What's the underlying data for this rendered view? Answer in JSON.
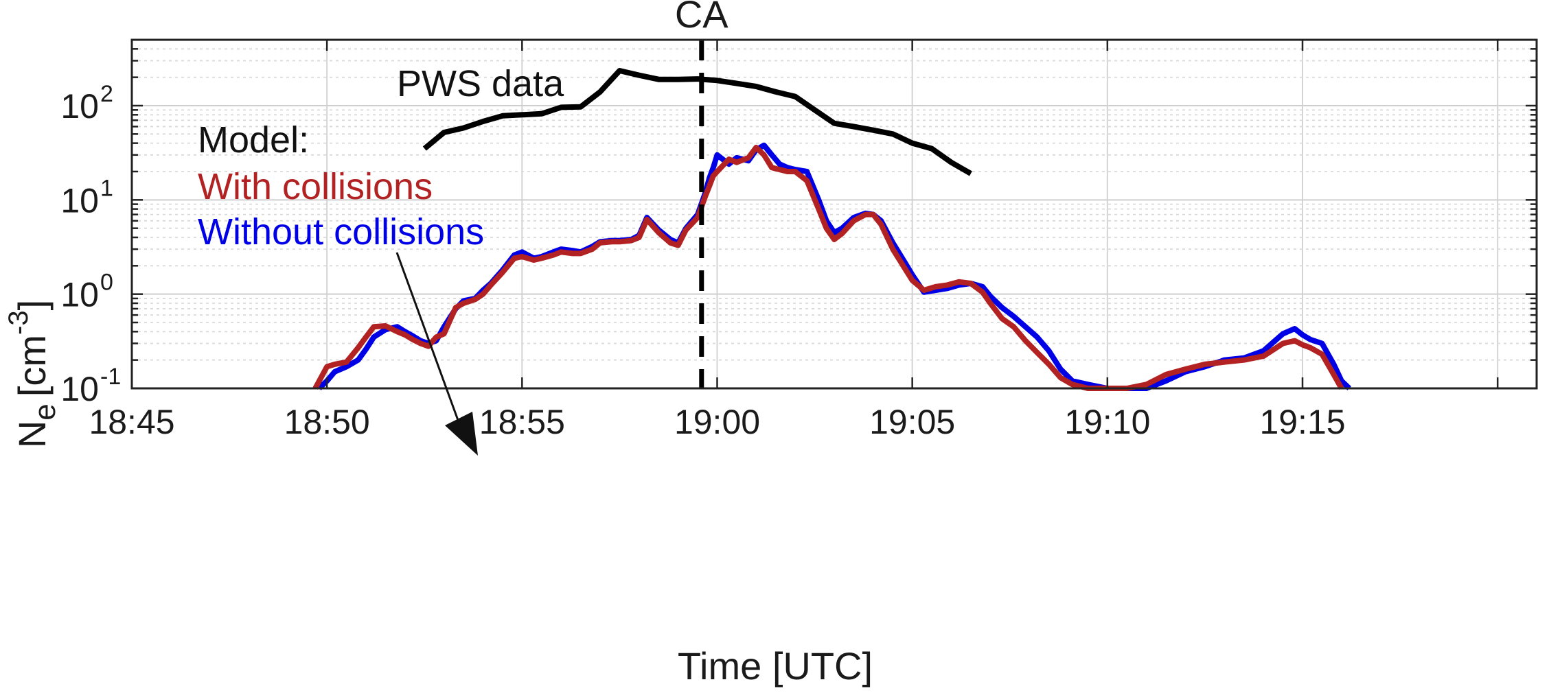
{
  "chart_data": {
    "type": "line",
    "title": "",
    "xlabel": "Time [UTC]",
    "ylabel": "N",
    "ylabel_subscript": "e",
    "ylabel_unit_prefix": "[cm",
    "ylabel_unit_exp": "-3",
    "ylabel_unit_suffix": "]",
    "yscale": "log",
    "x_unit": "minutes after 18:45 UTC",
    "xlim": [
      0,
      36
    ],
    "ylim": [
      0.1,
      500
    ],
    "grid": true,
    "minor_grid": true,
    "xticks": [
      {
        "value": 0,
        "label": "18:45"
      },
      {
        "value": 5,
        "label": "18:50"
      },
      {
        "value": 10,
        "label": "18:55"
      },
      {
        "value": 15,
        "label": "19:00"
      },
      {
        "value": 20,
        "label": "19:05"
      },
      {
        "value": 25,
        "label": "19:10"
      },
      {
        "value": 30,
        "label": "19:15"
      }
    ],
    "yticks": [
      {
        "value": 0.1,
        "base": "10",
        "exp": "-1"
      },
      {
        "value": 1,
        "base": "10",
        "exp": "0"
      },
      {
        "value": 10,
        "base": "10",
        "exp": "1"
      },
      {
        "value": 100,
        "base": "10",
        "exp": "2"
      }
    ],
    "vline": {
      "x": 14.6,
      "label": "CA",
      "color": "#000000",
      "style": "dashed"
    },
    "annotations": {
      "pws_label": "PWS data",
      "model_label": "Model:",
      "with_label": "With collisions",
      "without_label": "Without collisions"
    },
    "series": [
      {
        "name": "PWS data",
        "color": "#000000",
        "x": [
          7.5,
          8.0,
          8.5,
          9.0,
          9.5,
          10.0,
          10.5,
          11.0,
          11.5,
          12.0,
          12.5,
          13.0,
          13.5,
          14.0,
          14.5,
          15.0,
          15.5,
          16.0,
          16.5,
          17.0,
          17.5,
          18.0,
          18.5,
          19.0,
          19.5,
          20.0,
          20.5,
          21.0,
          21.5
        ],
        "values": [
          35,
          52,
          58,
          68,
          78,
          80,
          82,
          96,
          97,
          140,
          235,
          210,
          190,
          190,
          192,
          185,
          172,
          160,
          140,
          125,
          90,
          65,
          60,
          55,
          50,
          40,
          35,
          25,
          19
        ]
      },
      {
        "name": "Without collisions",
        "color": "#0000e6",
        "x": [
          4.8,
          5.0,
          5.2,
          5.5,
          5.8,
          6.0,
          6.2,
          6.5,
          6.8,
          7.0,
          7.2,
          7.4,
          7.6,
          7.8,
          8.0,
          8.3,
          8.5,
          8.8,
          9.0,
          9.2,
          9.5,
          9.8,
          10.0,
          10.3,
          10.5,
          10.8,
          11.0,
          11.3,
          11.5,
          11.8,
          12.0,
          12.3,
          12.5,
          12.8,
          13.0,
          13.2,
          13.5,
          13.8,
          14.0,
          14.2,
          14.5,
          14.7,
          14.8,
          14.9,
          15.0,
          15.3,
          15.5,
          15.8,
          16.0,
          16.2,
          16.4,
          16.6,
          16.8,
          17.0,
          17.3,
          17.6,
          17.8,
          18.0,
          18.2,
          18.5,
          18.8,
          19.0,
          19.2,
          19.5,
          19.8,
          20.0,
          20.3,
          20.6,
          20.9,
          21.2,
          21.5,
          21.8,
          22.0,
          22.3,
          22.6,
          22.9,
          23.2,
          23.5,
          23.8,
          24.1,
          24.5,
          25.0,
          25.5,
          26.0,
          26.5,
          27.0,
          27.5,
          28.0,
          28.5,
          29.0,
          29.5,
          29.8,
          30.0,
          30.2,
          30.5,
          30.8,
          31.0,
          31.2
        ],
        "values": [
          0.1,
          0.12,
          0.15,
          0.17,
          0.2,
          0.26,
          0.35,
          0.42,
          0.45,
          0.4,
          0.36,
          0.32,
          0.3,
          0.32,
          0.45,
          0.7,
          0.85,
          0.9,
          1.1,
          1.3,
          1.8,
          2.6,
          2.8,
          2.4,
          2.5,
          2.8,
          3.0,
          2.9,
          2.8,
          3.2,
          3.6,
          3.7,
          3.7,
          3.8,
          4.2,
          6.5,
          4.8,
          3.8,
          3.5,
          5.0,
          7.0,
          12.0,
          17.0,
          22.0,
          30.0,
          24.0,
          28.0,
          26.0,
          34.0,
          38.0,
          30.0,
          24.0,
          22.0,
          21.0,
          20.0,
          10.0,
          6.0,
          4.5,
          5.0,
          6.5,
          7.2,
          7.0,
          6.0,
          3.5,
          2.2,
          1.6,
          1.05,
          1.1,
          1.15,
          1.25,
          1.3,
          1.2,
          0.95,
          0.72,
          0.58,
          0.45,
          0.35,
          0.25,
          0.16,
          0.12,
          0.11,
          0.1,
          0.1,
          0.1,
          0.12,
          0.15,
          0.17,
          0.2,
          0.21,
          0.25,
          0.38,
          0.43,
          0.37,
          0.33,
          0.3,
          0.18,
          0.12,
          0.1
        ]
      },
      {
        "name": "With collisions",
        "color": "#b22222",
        "x": [
          4.7,
          5.0,
          5.2,
          5.5,
          5.8,
          6.0,
          6.2,
          6.5,
          6.8,
          7.0,
          7.2,
          7.4,
          7.6,
          7.8,
          8.0,
          8.3,
          8.5,
          8.8,
          9.0,
          9.2,
          9.5,
          9.8,
          10.0,
          10.3,
          10.5,
          10.8,
          11.0,
          11.3,
          11.5,
          11.8,
          12.0,
          12.3,
          12.5,
          12.8,
          13.0,
          13.2,
          13.5,
          13.8,
          14.0,
          14.2,
          14.5,
          14.7,
          14.8,
          14.9,
          15.0,
          15.3,
          15.5,
          15.8,
          16.0,
          16.2,
          16.4,
          16.6,
          16.8,
          17.0,
          17.3,
          17.6,
          17.8,
          18.0,
          18.2,
          18.5,
          18.8,
          19.0,
          19.2,
          19.5,
          19.8,
          20.0,
          20.3,
          20.6,
          20.9,
          21.2,
          21.5,
          21.8,
          22.0,
          22.3,
          22.6,
          22.9,
          23.2,
          23.5,
          23.8,
          24.1,
          24.5,
          25.0,
          25.5,
          26.0,
          26.5,
          27.0,
          27.5,
          28.0,
          28.5,
          29.0,
          29.5,
          29.8,
          30.0,
          30.2,
          30.5,
          30.8,
          31.0
        ],
        "values": [
          0.1,
          0.17,
          0.18,
          0.19,
          0.27,
          0.35,
          0.45,
          0.46,
          0.4,
          0.37,
          0.33,
          0.3,
          0.28,
          0.35,
          0.38,
          0.72,
          0.8,
          0.88,
          1.0,
          1.25,
          1.7,
          2.4,
          2.5,
          2.3,
          2.4,
          2.6,
          2.8,
          2.7,
          2.7,
          3.0,
          3.5,
          3.6,
          3.6,
          3.7,
          4.0,
          6.2,
          4.5,
          3.5,
          3.3,
          4.8,
          6.5,
          11.0,
          14.0,
          18.0,
          20.0,
          27.0,
          25.0,
          28.0,
          36.0,
          30.0,
          22.0,
          21.0,
          20.0,
          20.0,
          16.0,
          8.0,
          5.0,
          3.8,
          4.4,
          6.0,
          7.0,
          7.0,
          5.5,
          3.0,
          1.9,
          1.4,
          1.1,
          1.2,
          1.25,
          1.35,
          1.3,
          1.05,
          0.8,
          0.55,
          0.45,
          0.32,
          0.24,
          0.18,
          0.13,
          0.11,
          0.1,
          0.1,
          0.1,
          0.11,
          0.14,
          0.16,
          0.18,
          0.19,
          0.2,
          0.22,
          0.3,
          0.32,
          0.29,
          0.27,
          0.23,
          0.14,
          0.1
        ]
      }
    ]
  }
}
